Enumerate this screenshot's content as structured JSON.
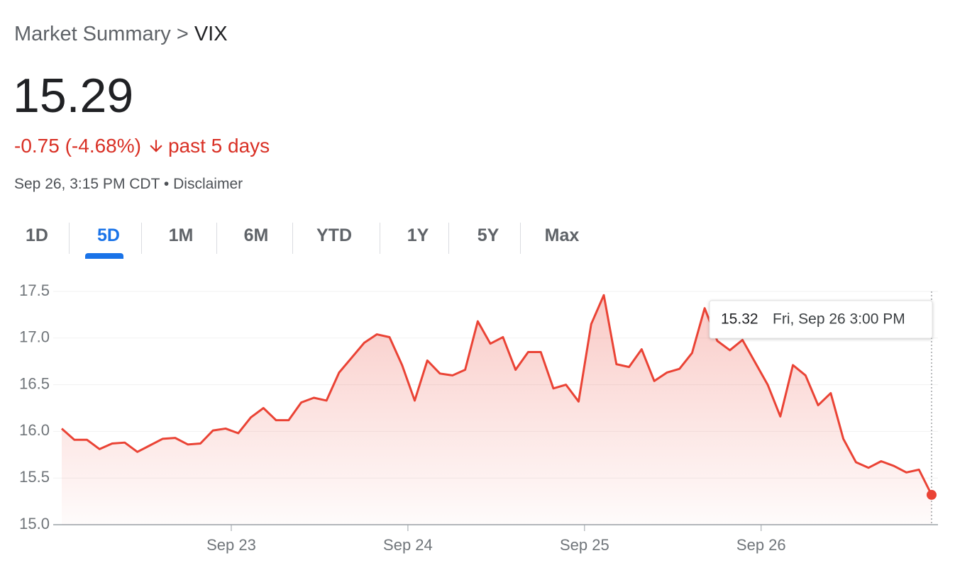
{
  "header": {
    "breadcrumb": "Market Summary",
    "separator": ">",
    "symbol": "VIX"
  },
  "quote": {
    "price": "15.29",
    "change": "-0.75 (-4.68%)",
    "period": "past 5 days",
    "timestamp": "Sep 26, 3:15 PM CDT",
    "separator": "•",
    "disclaimer": "Disclaimer"
  },
  "tabs": {
    "items": [
      "1D",
      "5D",
      "1M",
      "6M",
      "YTD",
      "1Y",
      "5Y",
      "Max"
    ],
    "active": 1
  },
  "chart_data": {
    "type": "line",
    "color": "#ea4335",
    "area": true,
    "grid": true,
    "values": [
      16.03,
      15.91,
      15.91,
      15.81,
      15.87,
      15.88,
      15.78,
      15.85,
      15.92,
      15.93,
      15.86,
      15.87,
      16.01,
      16.03,
      15.98,
      16.15,
      16.25,
      16.12,
      16.12,
      16.31,
      16.36,
      16.33,
      16.63,
      16.79,
      16.95,
      17.04,
      17.01,
      16.71,
      16.33,
      16.76,
      16.62,
      16.6,
      16.66,
      17.18,
      16.94,
      17.01,
      16.66,
      16.85,
      16.85,
      16.46,
      16.5,
      16.32,
      17.15,
      17.46,
      16.72,
      16.69,
      16.88,
      16.54,
      16.63,
      16.67,
      16.84,
      17.32,
      16.97,
      16.87,
      16.98,
      16.74,
      16.5,
      16.16,
      16.71,
      16.6,
      16.28,
      16.41,
      15.92,
      15.67,
      15.61,
      15.68,
      15.63,
      15.56,
      15.59,
      15.32
    ],
    "xlim": [
      0,
      69
    ],
    "xticks": [
      {
        "value": 13.45,
        "label": "Sep 23"
      },
      {
        "value": 27.46,
        "label": "Sep 24"
      },
      {
        "value": 41.47,
        "label": "Sep 25"
      },
      {
        "value": 55.48,
        "label": "Sep 26"
      }
    ],
    "ylim": [
      15,
      17.5
    ],
    "yticks": [
      17.5,
      {
        "value": 17,
        "label": "17.0"
      },
      16.5,
      {
        "value": 16,
        "label": "16.0"
      },
      15.5,
      {
        "value": 15,
        "label": "15.0"
      }
    ],
    "tooltip": {
      "label": "Fri, Sep 26 3:00 PM"
    }
  }
}
